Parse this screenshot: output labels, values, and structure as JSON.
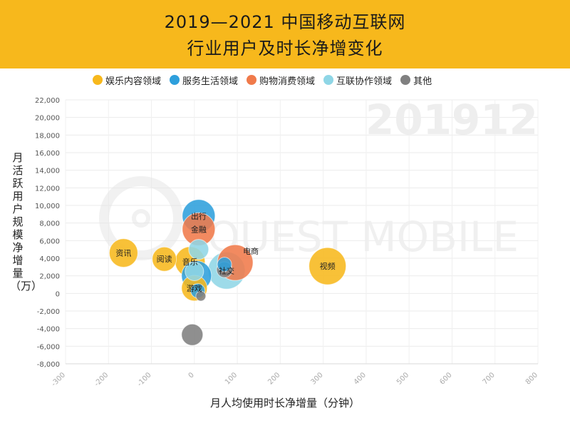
{
  "header": {
    "title_line1": "2019—2021 中国移动互联网",
    "title_line2": "行业用户及时长净增变化",
    "bg_color": "#f7b81c"
  },
  "legend": [
    {
      "label": "娱乐内容领域",
      "color": "#f7b81c"
    },
    {
      "label": "服务生活领域",
      "color": "#2e9fdc"
    },
    {
      "label": "购物消费领域",
      "color": "#f07a4a"
    },
    {
      "label": "互联协作领域",
      "color": "#8fd6e6"
    },
    {
      "label": "其他",
      "color": "#808080"
    }
  ],
  "watermark": {
    "period": "201912",
    "brand": "QUEST MOBILE"
  },
  "chart_data": {
    "type": "scatter",
    "xlabel": "月人均使用时长净增量（分钟）",
    "ylabel": "月活跃用户规模净增量（万）",
    "xlim": [
      -300,
      800
    ],
    "ylim": [
      -8000,
      22000
    ],
    "x_ticks": [
      -300,
      -200,
      -100,
      0,
      100,
      200,
      300,
      400,
      500,
      600,
      700,
      800
    ],
    "y_ticks": [
      -8000,
      -6000,
      -4000,
      -2000,
      0,
      2000,
      4000,
      6000,
      8000,
      10000,
      12000,
      14000,
      16000,
      18000,
      20000,
      22000
    ],
    "grid": true,
    "legend_position": "top",
    "points": [
      {
        "label": "资讯",
        "x": -165,
        "y": 4600,
        "r": 20,
        "color": "#f7b81c"
      },
      {
        "label": "阅读",
        "x": -70,
        "y": 3900,
        "r": 17,
        "color": "#f7b81c"
      },
      {
        "label": "视频",
        "x": 310,
        "y": 3100,
        "r": 26,
        "color": "#f7b81c"
      },
      {
        "label": "音乐",
        "x": -10,
        "y": 3600,
        "r": 21,
        "color": "#f7b81c"
      },
      {
        "label": "游戏",
        "x": 0,
        "y": 600,
        "r": 18,
        "color": "#f7b81c"
      },
      {
        "label": "出行",
        "x": 10,
        "y": 8800,
        "r": 23,
        "color": "#2e9fdc"
      },
      {
        "label": "金融",
        "x": 10,
        "y": 7300,
        "r": 23,
        "color": "#f07a4a"
      },
      {
        "label": "电商",
        "x": 95,
        "y": 3500,
        "r": 25,
        "color": "#f07a4a"
      },
      {
        "label": "社交",
        "x": 75,
        "y": 2600,
        "r": 26,
        "color": "#8fd6e6"
      },
      {
        "label": "",
        "x": 10,
        "y": 5000,
        "r": 14,
        "color": "#8fd6e6"
      },
      {
        "label": "",
        "x": 5,
        "y": 2000,
        "r": 21,
        "color": "#2e9fdc"
      },
      {
        "label": "",
        "x": 0,
        "y": 2500,
        "r": 13,
        "color": "#8fd6e6"
      },
      {
        "label": "",
        "x": 70,
        "y": 3300,
        "r": 10,
        "color": "#2e9fdc"
      },
      {
        "label": "",
        "x": 8,
        "y": 300,
        "r": 10,
        "color": "#2e9fdc"
      },
      {
        "label": "",
        "x": 15,
        "y": -300,
        "r": 7,
        "color": "#808080"
      },
      {
        "label": "",
        "x": -5,
        "y": -4700,
        "r": 15,
        "color": "#808080"
      },
      {
        "label": "",
        "x": 70,
        "y": 2700,
        "r": 11,
        "color": "#808080"
      }
    ]
  }
}
